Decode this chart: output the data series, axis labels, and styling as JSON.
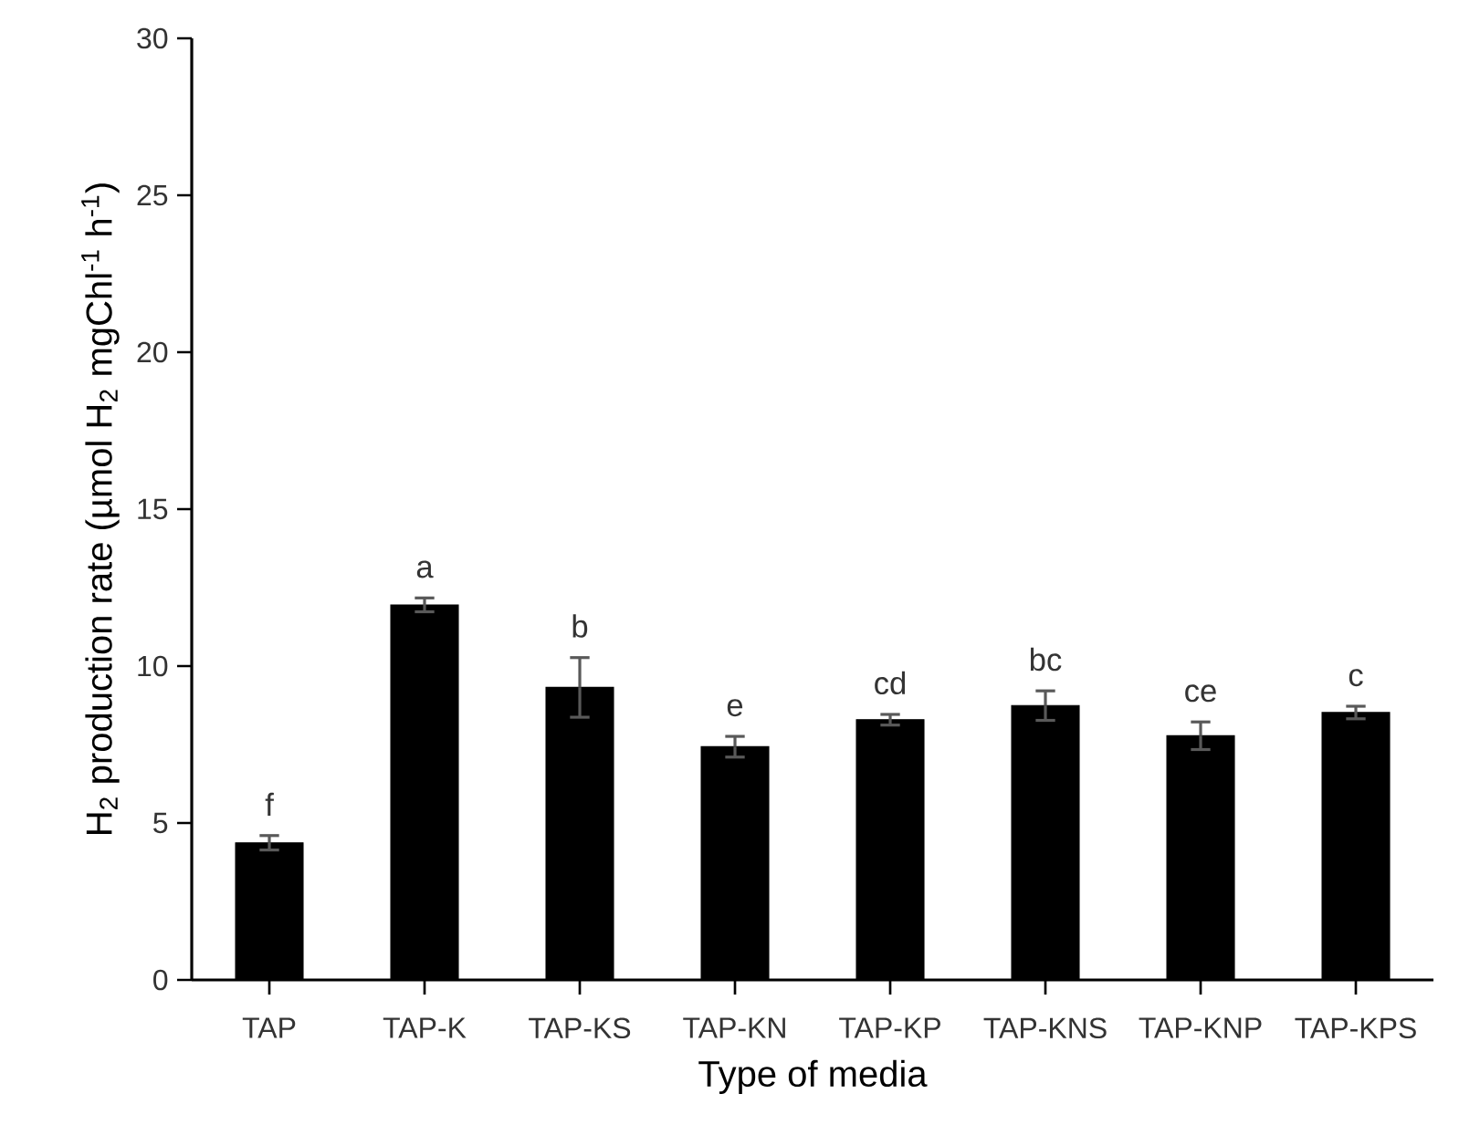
{
  "chart_data": {
    "type": "bar",
    "xlabel": "Type of media",
    "ylabel": "H$_{2}$ production rate (µmol H$_{2}$ mgChl$^{-1}$ h$^{-1}$)",
    "categories": [
      "TAP",
      "TAP-K",
      "TAP-KS",
      "TAP-KN",
      "TAP-KP",
      "TAP-KNS",
      "TAP-KNP",
      "TAP-KPS"
    ],
    "values": [
      4.37,
      11.95,
      9.32,
      7.43,
      8.29,
      8.74,
      7.78,
      8.52
    ],
    "errors": [
      0.23,
      0.22,
      0.95,
      0.33,
      0.17,
      0.47,
      0.44,
      0.2
    ],
    "color": "#000000",
    "ylim": [
      0,
      30
    ],
    "yticks": [
      0,
      5,
      10,
      15,
      20,
      25,
      30
    ],
    "annotations": [
      {
        "text": "f",
        "x": "TAP",
        "y": 4.6
      },
      {
        "text": "a",
        "x": "TAP-K",
        "y": 12.17
      },
      {
        "text": "b",
        "x": "TAP-KS",
        "y": 10.27
      },
      {
        "text": "e",
        "x": "TAP-KN",
        "y": 7.76
      },
      {
        "text": "cd",
        "x": "TAP-KP",
        "y": 8.46
      },
      {
        "text": "bc",
        "x": "TAP-KNS",
        "y": 9.21
      },
      {
        "text": "ce",
        "x": "TAP-KNP",
        "y": 8.22
      },
      {
        "text": "c",
        "x": "TAP-KPS",
        "y": 8.72
      }
    ]
  }
}
